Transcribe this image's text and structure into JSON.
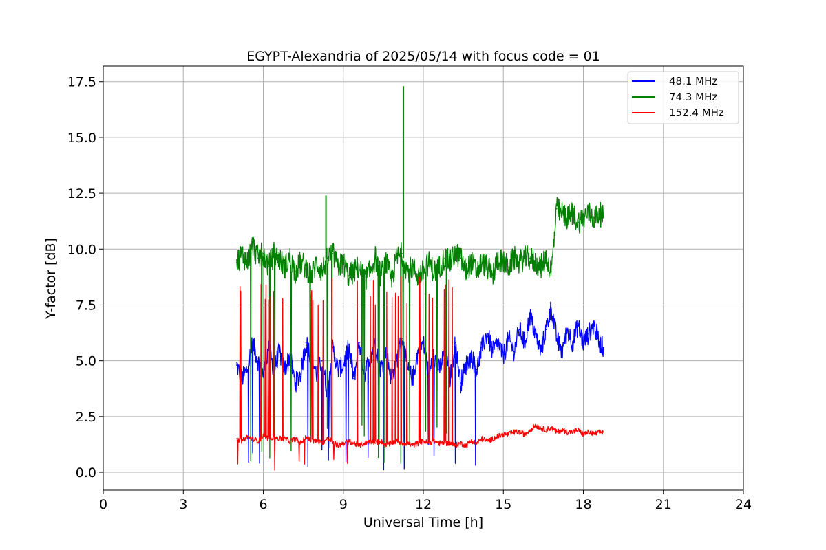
{
  "chart_data": {
    "type": "line",
    "title": "EGYPT-Alexandria of 2025/05/14 with focus code = 01",
    "xlabel": "Universal Time [h]",
    "ylabel": "Y-factor [dB]",
    "xlim": [
      0,
      24
    ],
    "ylim": [
      -0.8,
      18.2
    ],
    "xticks": [
      "0",
      "3",
      "6",
      "9",
      "12",
      "15",
      "18",
      "21",
      "24"
    ],
    "yticks": [
      "0.0",
      "2.5",
      "5.0",
      "7.5",
      "10.0",
      "12.5",
      "15.0",
      "17.5"
    ],
    "grid": true,
    "legend_position": "top-right",
    "series": [
      {
        "name": "48.1 MHz",
        "color": "#0000ff",
        "x": [
          5.0,
          5.2,
          5.4,
          5.6,
          5.8,
          6.0,
          6.2,
          6.4,
          6.6,
          6.8,
          7.0,
          7.2,
          7.4,
          7.6,
          7.8,
          8.0,
          8.2,
          8.4,
          8.6,
          8.8,
          9.0,
          9.2,
          9.4,
          9.6,
          9.8,
          10.0,
          10.2,
          10.4,
          10.6,
          10.8,
          11.0,
          11.2,
          11.4,
          11.6,
          11.8,
          12.0,
          12.2,
          12.4,
          12.6,
          12.8,
          13.0,
          13.2,
          13.4,
          13.6,
          13.8,
          14.0,
          14.2,
          14.4,
          14.6,
          14.8,
          15.0,
          15.2,
          15.4,
          15.6,
          15.8,
          16.0,
          16.2,
          16.4,
          16.6,
          16.8,
          17.0,
          17.2,
          17.4,
          17.6,
          17.8,
          18.0,
          18.2,
          18.4,
          18.6,
          18.75
        ],
        "values": [
          4.8,
          4.2,
          4.6,
          5.8,
          5.0,
          4.4,
          5.6,
          4.6,
          5.4,
          4.6,
          5.2,
          4.0,
          4.4,
          5.8,
          5.2,
          4.4,
          5.0,
          3.6,
          5.6,
          4.6,
          4.8,
          5.6,
          4.2,
          5.8,
          4.4,
          5.2,
          5.8,
          4.6,
          5.4,
          4.2,
          5.0,
          6.0,
          4.6,
          4.2,
          5.4,
          5.8,
          4.4,
          5.2,
          4.6,
          5.4,
          4.2,
          5.8,
          4.0,
          4.8,
          5.2,
          4.6,
          5.6,
          6.2,
          5.4,
          5.8,
          5.2,
          6.0,
          5.4,
          6.4,
          5.8,
          7.0,
          6.2,
          5.4,
          6.4,
          7.4,
          6.0,
          5.4,
          6.4,
          5.8,
          6.6,
          5.8,
          6.2,
          6.6,
          5.8,
          5.6
        ]
      },
      {
        "name": "74.3 MHz",
        "color": "#008000",
        "x": [
          5.0,
          5.2,
          5.4,
          5.6,
          5.8,
          6.0,
          6.2,
          6.4,
          6.6,
          6.8,
          7.0,
          7.2,
          7.4,
          7.6,
          7.8,
          8.0,
          8.2,
          8.4,
          8.6,
          8.8,
          9.0,
          9.2,
          9.4,
          9.6,
          9.8,
          10.0,
          10.2,
          10.4,
          10.6,
          10.8,
          11.0,
          11.2,
          11.4,
          11.6,
          11.8,
          12.0,
          12.2,
          12.4,
          12.6,
          12.8,
          13.0,
          13.2,
          13.4,
          13.6,
          13.8,
          14.0,
          14.2,
          14.4,
          14.6,
          14.8,
          15.0,
          15.2,
          15.4,
          15.6,
          15.8,
          16.0,
          16.2,
          16.4,
          16.6,
          16.8,
          17.0,
          17.2,
          17.4,
          17.6,
          17.8,
          18.0,
          18.2,
          18.4,
          18.6,
          18.75
        ],
        "values": [
          9.4,
          9.8,
          9.4,
          10.2,
          9.6,
          9.8,
          9.2,
          9.8,
          9.6,
          9.2,
          9.6,
          9.0,
          9.4,
          9.2,
          8.8,
          9.4,
          9.0,
          9.6,
          9.8,
          9.2,
          9.4,
          8.8,
          9.0,
          9.2,
          8.6,
          9.0,
          9.6,
          8.8,
          9.4,
          8.6,
          9.6,
          9.8,
          9.0,
          9.2,
          8.8,
          9.0,
          9.4,
          9.0,
          9.2,
          9.6,
          9.4,
          9.8,
          9.6,
          9.0,
          9.4,
          9.0,
          9.4,
          9.2,
          8.8,
          9.6,
          9.4,
          9.2,
          9.6,
          9.4,
          9.6,
          9.6,
          9.4,
          9.2,
          9.6,
          9.0,
          11.8,
          11.6,
          11.4,
          11.6,
          11.2,
          11.4,
          11.6,
          11.4,
          11.6,
          11.4
        ]
      },
      {
        "name": "152.4 MHz",
        "color": "#ff0000",
        "x": [
          5.0,
          5.2,
          5.4,
          5.6,
          5.8,
          6.0,
          6.2,
          6.4,
          6.6,
          6.8,
          7.0,
          7.2,
          7.4,
          7.6,
          7.8,
          8.0,
          8.2,
          8.4,
          8.6,
          8.8,
          9.0,
          9.2,
          9.4,
          9.6,
          9.8,
          10.0,
          10.2,
          10.4,
          10.6,
          10.8,
          11.0,
          11.2,
          11.4,
          11.6,
          11.8,
          12.0,
          12.2,
          12.4,
          12.6,
          12.8,
          13.0,
          13.2,
          13.4,
          13.6,
          13.8,
          14.0,
          14.2,
          14.4,
          14.6,
          14.8,
          15.0,
          15.2,
          15.4,
          15.6,
          15.8,
          16.0,
          16.2,
          16.4,
          16.6,
          16.8,
          17.0,
          17.2,
          17.4,
          17.6,
          17.8,
          18.0,
          18.2,
          18.4,
          18.6,
          18.75
        ],
        "values": [
          1.5,
          1.4,
          1.6,
          1.5,
          1.4,
          1.6,
          1.5,
          1.6,
          1.5,
          1.5,
          1.4,
          1.5,
          1.3,
          1.6,
          1.4,
          1.4,
          1.3,
          1.5,
          1.4,
          1.2,
          1.3,
          1.4,
          1.3,
          1.2,
          1.3,
          1.4,
          1.3,
          1.4,
          1.2,
          1.3,
          1.4,
          1.3,
          1.3,
          1.2,
          1.3,
          1.4,
          1.3,
          1.4,
          1.3,
          1.3,
          1.3,
          1.2,
          1.3,
          1.2,
          1.4,
          1.3,
          1.5,
          1.4,
          1.5,
          1.6,
          1.7,
          1.7,
          1.8,
          1.8,
          1.7,
          1.9,
          2.1,
          2.0,
          1.9,
          2.0,
          1.8,
          1.9,
          1.8,
          1.8,
          1.9,
          1.7,
          1.8,
          1.7,
          1.8,
          1.8
        ]
      }
    ],
    "annotations": [
      {
        "series": "74.3 MHz",
        "x": 11.25,
        "y": 17.3,
        "kind": "spike"
      },
      {
        "series": "74.3 MHz",
        "x": 8.35,
        "y": 12.4,
        "kind": "spike"
      }
    ]
  }
}
